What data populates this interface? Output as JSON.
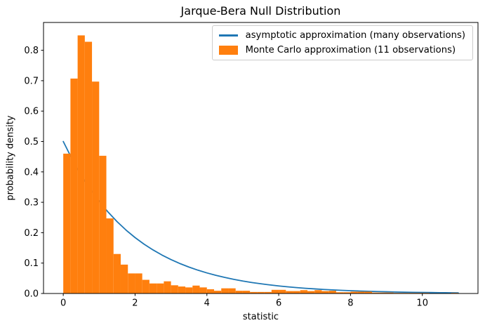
{
  "chart_data": {
    "type": "bar",
    "subtype": "histogram-with-line-overlay",
    "title": "Jarque-Bera Null Distribution",
    "xlabel": "statistic",
    "ylabel": "probability density",
    "xlim": [
      -0.55,
      11.55
    ],
    "ylim": [
      0,
      0.8915
    ],
    "grid": false,
    "legend_position": "upper right",
    "axes_color": "#000000",
    "background_color": "#ffffff",
    "xticks": [
      {
        "value": 0,
        "label": "0"
      },
      {
        "value": 2,
        "label": "2"
      },
      {
        "value": 4,
        "label": "4"
      },
      {
        "value": 6,
        "label": "6"
      },
      {
        "value": 8,
        "label": "8"
      },
      {
        "value": 10,
        "label": "10"
      }
    ],
    "yticks": [
      {
        "value": 0.0,
        "label": "0.0"
      },
      {
        "value": 0.1,
        "label": "0.1"
      },
      {
        "value": 0.2,
        "label": "0.2"
      },
      {
        "value": 0.3,
        "label": "0.3"
      },
      {
        "value": 0.4,
        "label": "0.4"
      },
      {
        "value": 0.5,
        "label": "0.5"
      },
      {
        "value": 0.6,
        "label": "0.6"
      },
      {
        "value": 0.7,
        "label": "0.7"
      },
      {
        "value": 0.8,
        "label": "0.8"
      }
    ],
    "series": [
      {
        "name": "asymptotic approximation (many observations)",
        "type": "line",
        "color": "#1f77b4",
        "line_width": 1.8,
        "x": [
          0,
          0.25,
          0.5,
          0.75,
          1,
          1.25,
          1.5,
          1.75,
          2,
          2.25,
          2.5,
          2.75,
          3,
          3.25,
          3.5,
          3.75,
          4,
          4.25,
          4.5,
          4.75,
          5,
          5.25,
          5.5,
          5.75,
          6,
          6.25,
          6.5,
          6.75,
          7,
          7.25,
          7.5,
          7.75,
          8,
          8.25,
          8.5,
          8.75,
          9,
          9.25,
          9.5,
          9.75,
          10,
          10.25,
          10.5,
          10.75,
          11
        ],
        "y": [
          0.5,
          0.4412,
          0.3894,
          0.3436,
          0.3033,
          0.2676,
          0.2362,
          0.2084,
          0.1839,
          0.1623,
          0.1433,
          0.1264,
          0.1116,
          0.0984,
          0.0869,
          0.0767,
          0.0677,
          0.0597,
          0.0527,
          0.0465,
          0.041,
          0.0362,
          0.032,
          0.0282,
          0.0249,
          0.022,
          0.0194,
          0.0171,
          0.0151,
          0.0133,
          0.0118,
          0.0104,
          0.0092,
          0.0081,
          0.0071,
          0.0063,
          0.0056,
          0.0049,
          0.0043,
          0.0038,
          0.0034,
          0.003,
          0.0026,
          0.0023,
          0.002
        ]
      },
      {
        "name": "Monte Carlo approximation (11 observations)",
        "type": "bar",
        "color": "#ff7f0e",
        "bin_start": 0,
        "bin_width": 0.2,
        "heights": [
          0.46,
          0.707,
          0.849,
          0.828,
          0.697,
          0.453,
          0.247,
          0.13,
          0.095,
          0.066,
          0.066,
          0.045,
          0.033,
          0.033,
          0.04,
          0.027,
          0.023,
          0.02,
          0.026,
          0.02,
          0.014,
          0.009,
          0.017,
          0.017,
          0.009,
          0.009,
          0.005,
          0.005,
          0.005,
          0.012,
          0.012,
          0.008,
          0.008,
          0.011,
          0.008,
          0.011,
          0.008,
          0.009,
          0.004,
          0.004,
          0.006,
          0.006,
          0.006,
          0.003,
          0.003,
          0.003,
          0.002,
          0.002,
          0.002,
          0.002,
          0.002,
          0.001,
          0.001,
          0.001,
          0.002
        ]
      }
    ]
  }
}
